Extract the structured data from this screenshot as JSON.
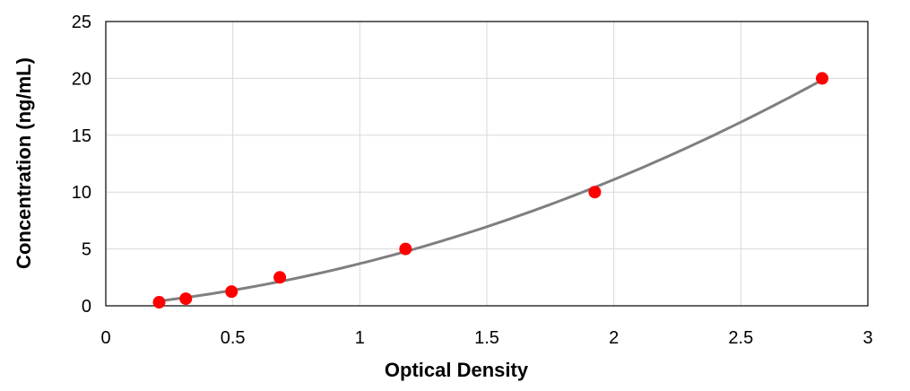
{
  "chart_data": {
    "type": "scatter",
    "title": "",
    "xlabel": "Optical Density",
    "ylabel": "Concentration (ng/mL)",
    "xlim": [
      0,
      3
    ],
    "ylim": [
      0,
      25
    ],
    "xticks": [
      0,
      0.5,
      1,
      1.5,
      2,
      2.5,
      3
    ],
    "yticks": [
      0,
      5,
      10,
      15,
      20,
      25
    ],
    "xtick_labels": [
      "0",
      "0.5",
      "1",
      "1.5",
      "2",
      "2.5",
      "3"
    ],
    "ytick_labels": [
      "0",
      "5",
      "10",
      "15",
      "20",
      "25"
    ],
    "grid": true,
    "legend": "none",
    "series": [
      {
        "x": [
          0.21,
          0.315,
          0.495,
          0.685,
          1.18,
          1.925,
          2.82
        ],
        "y": [
          0.3125,
          0.625,
          1.25,
          2.5,
          5,
          10,
          20
        ],
        "color": "#ff0000",
        "marker": "circle"
      }
    ],
    "trendline": {
      "type": "polynomial",
      "color": "#7f7f7f",
      "x": [
        0.21,
        0.3,
        0.4,
        0.5,
        0.6,
        0.7,
        0.8,
        0.9,
        1.0,
        1.1,
        1.2,
        1.3,
        1.4,
        1.5,
        1.6,
        1.7,
        1.8,
        1.9,
        2.0,
        2.1,
        2.2,
        2.3,
        2.4,
        2.5,
        2.6,
        2.7,
        2.82
      ],
      "y": [
        0.4,
        0.7,
        1.0,
        1.3,
        1.7,
        2.1,
        2.5,
        3.0,
        3.5,
        4.05,
        4.6,
        5.15,
        5.75,
        6.35,
        6.95,
        7.6,
        8.3,
        9.0,
        9.75,
        10.5,
        11.3,
        12.15,
        13.0,
        13.9,
        14.8,
        15.8,
        19.95
      ]
    }
  }
}
